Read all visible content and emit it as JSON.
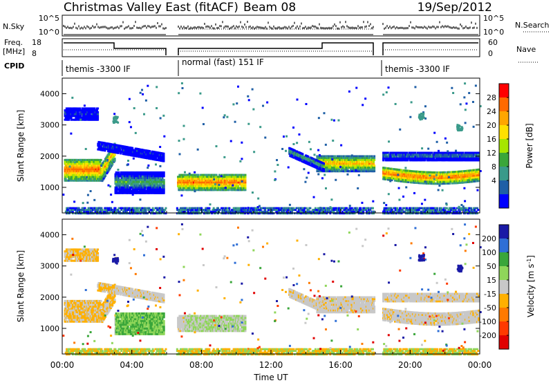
{
  "header": {
    "title": "Christmas Valley East (fitACF)",
    "beam": "Beam 08",
    "date": "19/Sep/2012"
  },
  "strip": {
    "nsky_label": "N.Sky",
    "nsearch_label": "N.Search",
    "nsky_ticks": [
      "10^5",
      "10^0"
    ],
    "nsky_right_ticks": [
      "10^5",
      "10^0"
    ],
    "freq_label_1": "Freq.",
    "freq_label_2": "[MHz]",
    "freq_ticks": [
      "18",
      "8"
    ],
    "nave_ticks": [
      "60",
      "0"
    ],
    "nave_label": "Nave",
    "cpid_label": "CPID",
    "cpid_segments": [
      "themis -3300 IF",
      "normal (fast) 151 IF",
      "themis -3300 IF"
    ]
  },
  "chart_data": [
    {
      "type": "heatmap",
      "title": "",
      "ylabel": "Slant Range [km]",
      "xlabel": "",
      "ylim": [
        180,
        4500
      ],
      "yticks": [
        "1000",
        "2000",
        "3000",
        "4000"
      ],
      "colorbar": {
        "label": "Power [dB]",
        "ticks": [
          "28",
          "24",
          "20",
          "16",
          "12",
          "8",
          "4"
        ],
        "colors": [
          "#ff0000",
          "#ff6a00",
          "#ffa600",
          "#ffe000",
          "#a6e600",
          "#3aa63a",
          "#3a9a8a",
          "#1f5fa6",
          "#0000ff"
        ]
      }
    },
    {
      "type": "heatmap",
      "title": "",
      "ylabel": "Slant Range [km]",
      "xlabel": "Time UT",
      "ylim": [
        180,
        4500
      ],
      "yticks": [
        "1000",
        "2000",
        "3000",
        "4000"
      ],
      "xticks": [
        "00:00",
        "04:00",
        "08:00",
        "12:00",
        "16:00",
        "20:00",
        "00:00"
      ],
      "colorbar": {
        "label": "Velocity [m s",
        "label_sup": "-1",
        "label_end": "]",
        "ticks": [
          "200",
          "100",
          "50",
          "15",
          "-15",
          "-50",
          "-100",
          "-200"
        ],
        "colors": [
          "#1a1aa6",
          "#2f6fd6",
          "#3aa63a",
          "#8fd65a",
          "#c8c8c8",
          "#ffb000",
          "#ff7a00",
          "#ff3a00",
          "#e00000"
        ]
      }
    }
  ]
}
